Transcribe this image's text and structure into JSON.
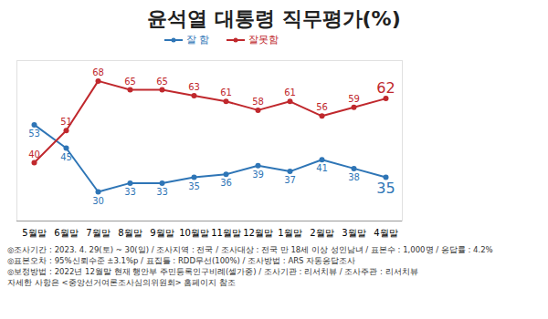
{
  "chart_data": {
    "type": "line",
    "title": "윤석열 대통령 직무평가(%)",
    "categories": [
      "5월말",
      "6월말",
      "7월말",
      "8월말",
      "9월말",
      "10월말",
      "11월말",
      "12월말",
      "1월말",
      "2월말",
      "3월말",
      "4월말"
    ],
    "series": [
      {
        "name": "잘 함",
        "color": "#2e75b6",
        "marker": "circle",
        "values": [
          53,
          45,
          30,
          33,
          33,
          35,
          36,
          39,
          37,
          41,
          38,
          35
        ]
      },
      {
        "name": "잘못함",
        "color": "#c0282d",
        "marker": "circle",
        "values": [
          40,
          51,
          68,
          65,
          65,
          63,
          61,
          58,
          61,
          56,
          59,
          62
        ]
      }
    ],
    "ylim": [
      20,
      75
    ],
    "tick_labels": "x",
    "data_labels": true,
    "legend": "top",
    "grid": false,
    "notes": [
      "◎조사기간 : 2023. 4. 29(토) ~ 30(일) / 조사지역 : 전국 / 조사대상 : 전국 만 18세 이상 성인남녀 / 표본수 : 1,000명 / 응답률 : 4.2%",
      "◎표본오차 : 95%신뢰수준 ±3.1%p / 표집틀 : RDD무선(100%) / 조사방법 : ARS 자동응답조사",
      "◎보정방법 : 2022년 12월말 현재 행안부 주민등록인구비례(셀가중) / 조사기관 : 리서치뷰 / 조사주관 : 리서치뷰",
      "자세한 사항은 <중앙선거여론조사심의위원회> 홈페이지 참조"
    ]
  }
}
